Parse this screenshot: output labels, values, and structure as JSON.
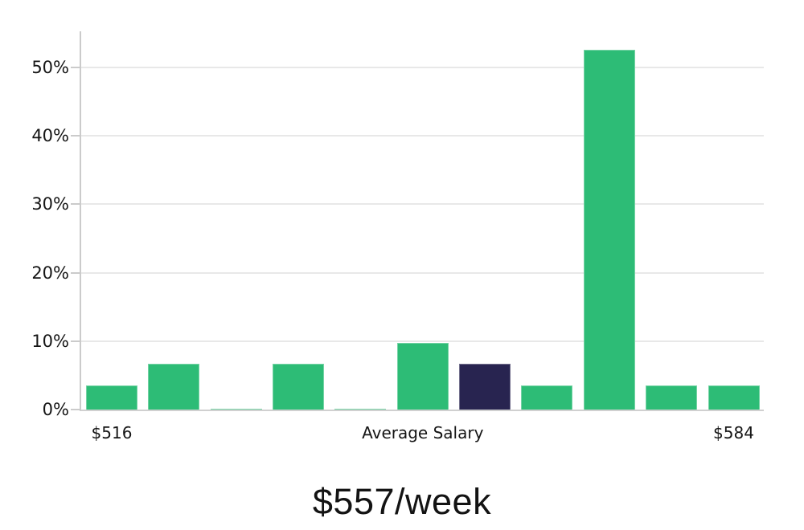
{
  "chart_data": {
    "type": "bar",
    "title": "",
    "caption": "$557/week",
    "y_axis": {
      "tick_values": [
        0,
        10,
        20,
        30,
        40,
        50
      ],
      "tick_labels": [
        "0%",
        "10%",
        "20%",
        "30%",
        "40%",
        "50%"
      ],
      "max": 55.3,
      "grid": true
    },
    "x_axis": {
      "tick_bar_indices": [
        0,
        5,
        10
      ],
      "tick_labels": [
        "$516",
        "Average Salary",
        "$584"
      ]
    },
    "values": [
      3.5,
      6.7,
      0.15,
      6.7,
      0.15,
      9.8,
      6.7,
      3.5,
      52.6,
      3.5,
      3.5
    ],
    "highlight_index": 6,
    "colors": {
      "bar": "#2dbc76",
      "highlight": "#282450",
      "gridline": "#e8e8e8",
      "axis": "#cbcbcb",
      "text": "#151515"
    },
    "legend": "none"
  }
}
